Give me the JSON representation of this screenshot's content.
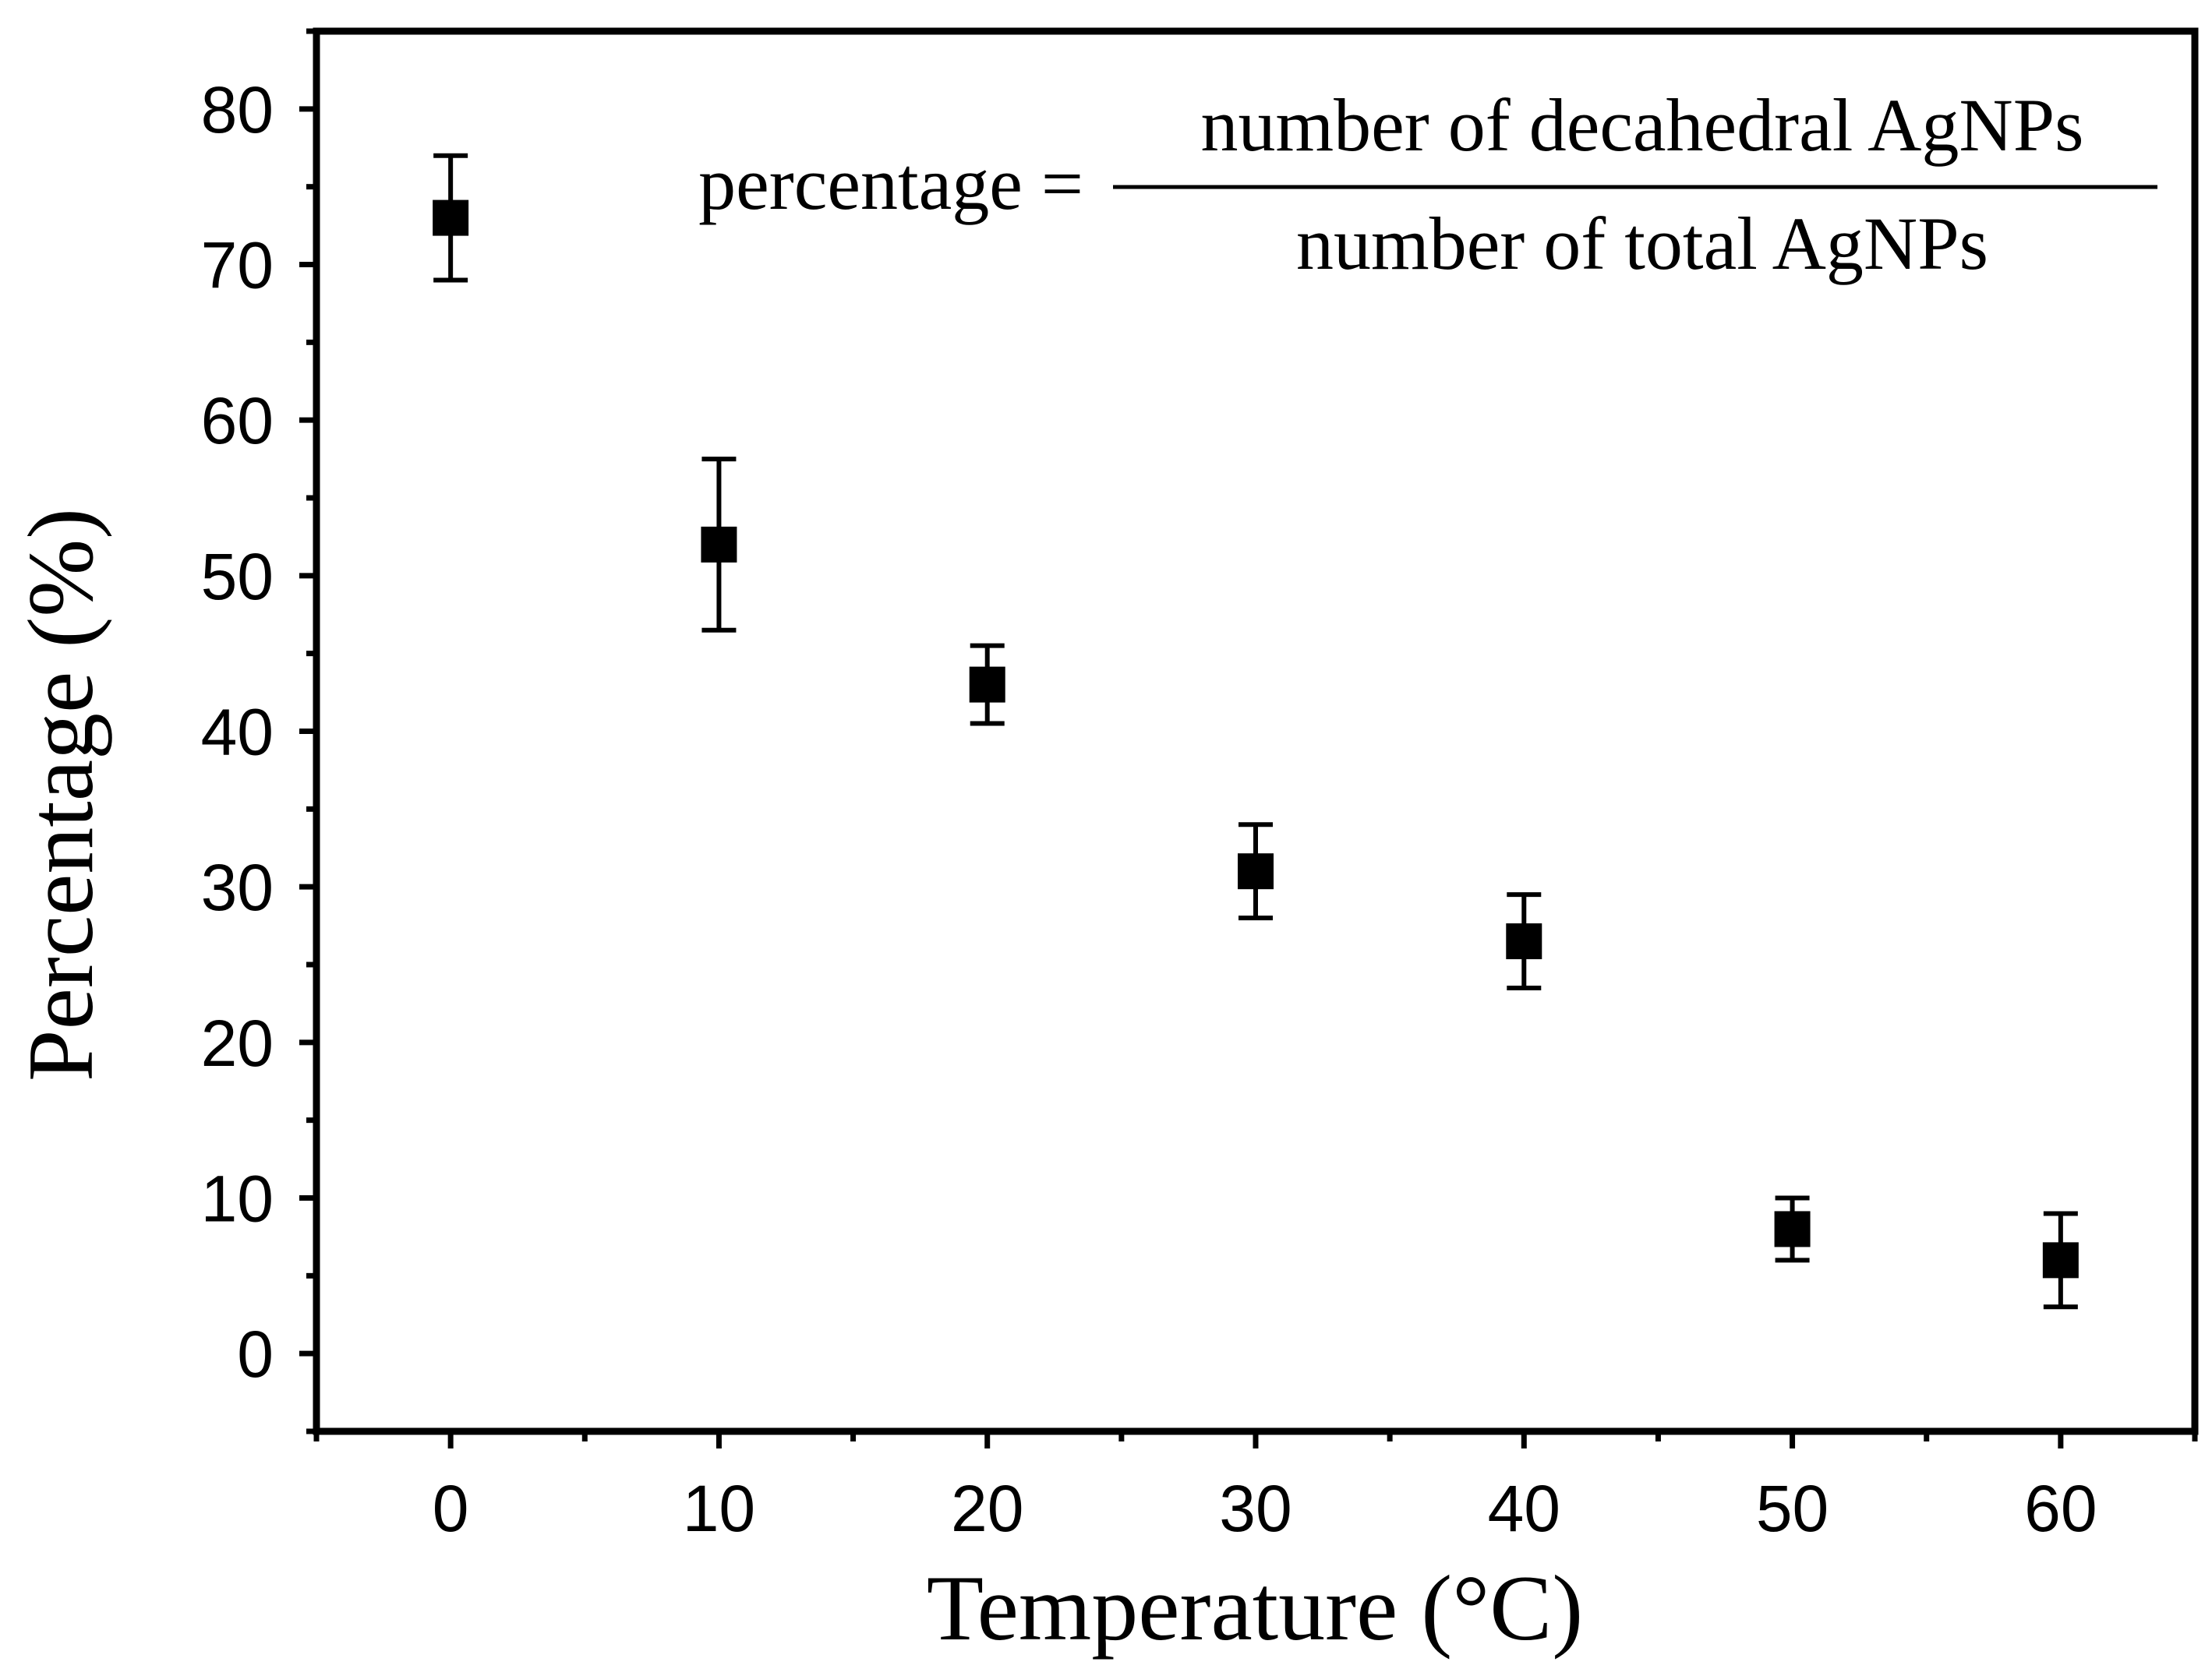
{
  "chart_data": {
    "type": "scatter",
    "title": "",
    "xlabel": "Temperature (°C)",
    "ylabel": "Percentage (%)",
    "xlim": [
      -5,
      65
    ],
    "ylim": [
      -5,
      85
    ],
    "grid": false,
    "legend": "none",
    "x_ticks": [
      {
        "value": 0,
        "label": "0"
      },
      {
        "value": 10,
        "label": "10"
      },
      {
        "value": 20,
        "label": "20"
      },
      {
        "value": 30,
        "label": "30"
      },
      {
        "value": 40,
        "label": "40"
      },
      {
        "value": 50,
        "label": "50"
      },
      {
        "value": 60,
        "label": "60"
      }
    ],
    "y_ticks": [
      {
        "value": 0,
        "label": "0"
      },
      {
        "value": 10,
        "label": "10"
      },
      {
        "value": 20,
        "label": "20"
      },
      {
        "value": 30,
        "label": "30"
      },
      {
        "value": 40,
        "label": "40"
      },
      {
        "value": 50,
        "label": "50"
      },
      {
        "value": 60,
        "label": "60"
      },
      {
        "value": 70,
        "label": "70"
      },
      {
        "value": 80,
        "label": "80"
      }
    ],
    "series": [
      {
        "name": "Percentage of decahedral AgNPs",
        "marker": "square",
        "color": "#000000",
        "points": [
          {
            "x": 0,
            "y": 73,
            "err_low": 69,
            "err_high": 77
          },
          {
            "x": 10,
            "y": 52,
            "err_low": 46.5,
            "err_high": 57.5
          },
          {
            "x": 20,
            "y": 43,
            "err_low": 40.5,
            "err_high": 45.5
          },
          {
            "x": 30,
            "y": 31,
            "err_low": 28,
            "err_high": 34
          },
          {
            "x": 40,
            "y": 26.5,
            "err_low": 23.5,
            "err_high": 29.5
          },
          {
            "x": 50,
            "y": 8,
            "err_low": 6,
            "err_high": 10
          },
          {
            "x": 60,
            "y": 6,
            "err_low": 3,
            "err_high": 9
          }
        ]
      }
    ],
    "annotation": {
      "lhs": "percentage =",
      "numerator": "number of decahedral AgNPs",
      "denominator": "number of total AgNPs"
    }
  }
}
